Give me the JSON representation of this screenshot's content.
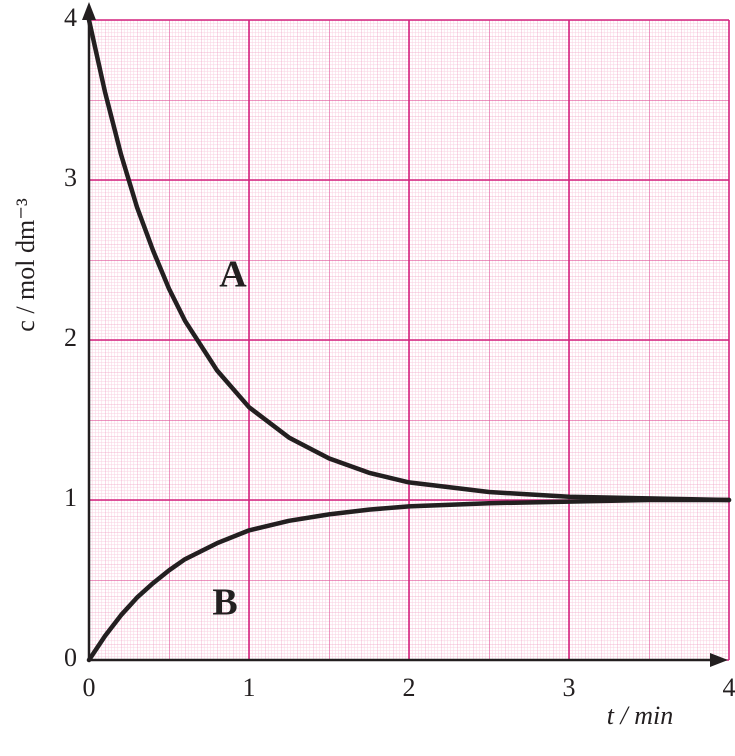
{
  "chart_data": {
    "type": "line",
    "x_label": "t / min",
    "y_label": "c / mol dm⁻³",
    "x": [
      0,
      0.1,
      0.2,
      0.3,
      0.4,
      0.5,
      0.6,
      0.8,
      1.0,
      1.25,
      1.5,
      1.75,
      2,
      2.5,
      3,
      3.5,
      4
    ],
    "series": [
      {
        "name": "A",
        "color": "#231f20",
        "values": [
          4,
          3.55,
          3.16,
          2.83,
          2.56,
          2.32,
          2.12,
          1.81,
          1.58,
          1.39,
          1.26,
          1.17,
          1.11,
          1.05,
          1.02,
          1.01,
          1.0
        ]
      },
      {
        "name": "B",
        "color": "#231f20",
        "values": [
          0,
          0.15,
          0.28,
          0.39,
          0.48,
          0.56,
          0.63,
          0.73,
          0.81,
          0.87,
          0.91,
          0.94,
          0.96,
          0.98,
          0.99,
          1.0,
          1.0
        ]
      }
    ],
    "xlim": [
      0,
      4
    ],
    "ylim": [
      0,
      4
    ],
    "xticks": [
      0,
      1,
      2,
      3,
      4
    ],
    "yticks": [
      0,
      1,
      2,
      3,
      4
    ],
    "grid": true
  }
}
